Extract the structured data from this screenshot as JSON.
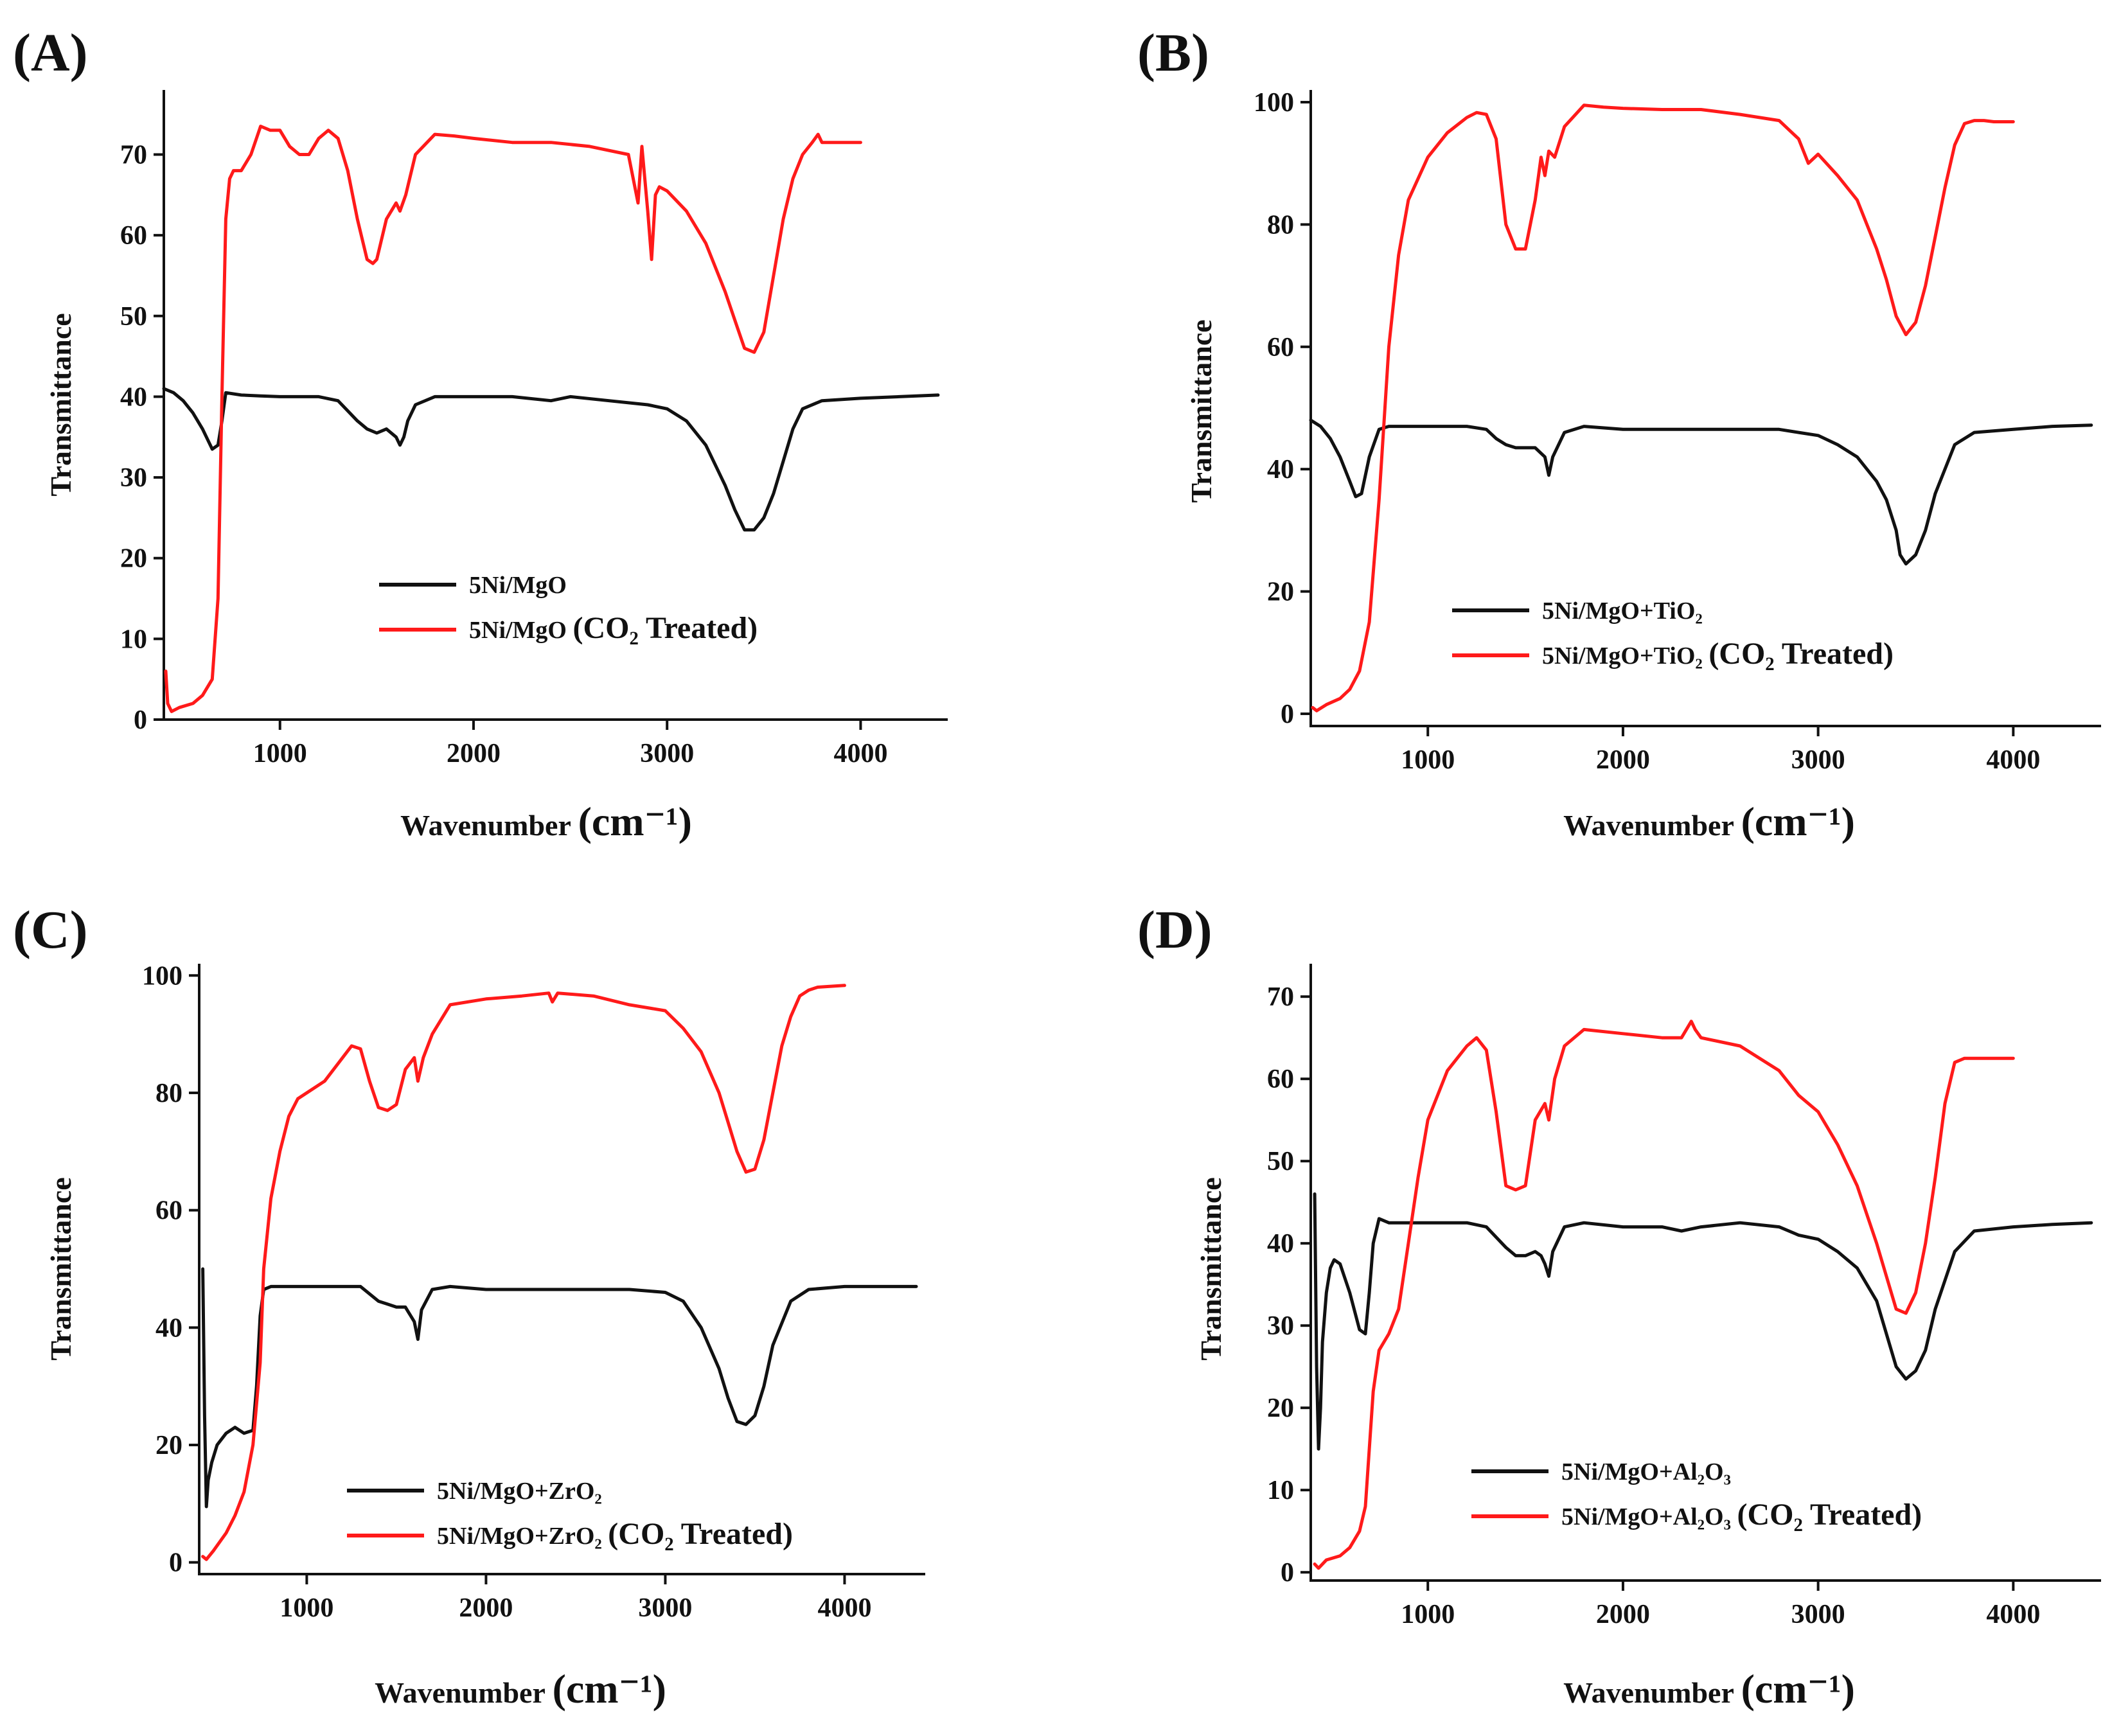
{
  "figure": {
    "x_unit": "(cm⁻¹)",
    "colors": {
      "untreated": "#111111",
      "co2_treated": "#ff1a1a"
    }
  },
  "chart_data": [
    {
      "type": "line",
      "panel": "(A)",
      "xlabel": "Wavenumber",
      "ylabel": "Transmittance",
      "xlim": [
        400,
        4450
      ],
      "ylim": [
        0,
        78
      ],
      "xticks": [
        1000,
        2000,
        3000,
        4000
      ],
      "yticks": [
        0,
        10,
        20,
        30,
        40,
        50,
        60,
        70
      ],
      "legend_position": "lower-center",
      "series": [
        {
          "name": "5Ni/MgO",
          "color": "#111111",
          "x": [
            400,
            450,
            500,
            550,
            600,
            650,
            680,
            700,
            720,
            800,
            900,
            1000,
            1100,
            1200,
            1300,
            1400,
            1450,
            1500,
            1550,
            1600,
            1620,
            1640,
            1660,
            1700,
            1800,
            2000,
            2200,
            2400,
            2500,
            2700,
            2900,
            3000,
            3100,
            3200,
            3300,
            3350,
            3400,
            3450,
            3500,
            3550,
            3600,
            3650,
            3700,
            3800,
            4000,
            4200,
            4400
          ],
          "y": [
            41,
            40.5,
            39.5,
            38,
            36,
            33.5,
            34,
            37,
            40.5,
            40.2,
            40.1,
            40,
            40,
            40,
            39.5,
            37,
            36,
            35.5,
            36,
            35,
            34,
            35,
            37,
            39,
            40,
            40,
            40,
            39.5,
            40,
            39.5,
            39,
            38.5,
            37,
            34,
            29,
            26,
            23.5,
            23.5,
            25,
            28,
            32,
            36,
            38.5,
            39.5,
            39.8,
            40,
            40.2
          ]
        },
        {
          "name": "5Ni/MgO (CO₂ Treated)",
          "color": "#ff1a1a",
          "x": [
            410,
            420,
            440,
            480,
            550,
            600,
            650,
            680,
            700,
            720,
            740,
            760,
            800,
            850,
            900,
            950,
            1000,
            1050,
            1100,
            1150,
            1200,
            1250,
            1300,
            1350,
            1400,
            1450,
            1480,
            1500,
            1550,
            1600,
            1620,
            1650,
            1700,
            1800,
            1900,
            2000,
            2200,
            2400,
            2600,
            2800,
            2850,
            2870,
            2900,
            2920,
            2940,
            2960,
            3000,
            3100,
            3200,
            3300,
            3350,
            3400,
            3450,
            3500,
            3550,
            3600,
            3650,
            3700,
            3750,
            3780,
            3800,
            3850,
            3900,
            4000
          ],
          "y": [
            6,
            2,
            1,
            1.5,
            2,
            3,
            5,
            15,
            40,
            62,
            67,
            68,
            68,
            70,
            73.5,
            73,
            73,
            71,
            70,
            70,
            72,
            73,
            72,
            68,
            62,
            57,
            56.5,
            57,
            62,
            64,
            63,
            65,
            70,
            72.5,
            72.3,
            72,
            71.5,
            71.5,
            71,
            70,
            64,
            71,
            63,
            57,
            65,
            66,
            65.5,
            63,
            59,
            53,
            49.5,
            46,
            45.5,
            48,
            55,
            62,
            67,
            70,
            71.5,
            72.5,
            71.5,
            71.5,
            71.5,
            71.5
          ]
        }
      ]
    },
    {
      "type": "line",
      "panel": "(B)",
      "xlabel": "Wavenumber",
      "ylabel": "Transmittance",
      "xlim": [
        400,
        4450
      ],
      "ylim": [
        -2,
        102
      ],
      "xticks": [
        1000,
        2000,
        3000,
        4000
      ],
      "yticks": [
        0,
        20,
        40,
        60,
        80,
        100
      ],
      "legend_position": "lower-center",
      "series": [
        {
          "name": "5Ni/MgO+TiO₂",
          "color": "#111111",
          "x": [
            400,
            450,
            500,
            550,
            600,
            630,
            660,
            700,
            750,
            800,
            900,
            1000,
            1100,
            1200,
            1300,
            1350,
            1400,
            1450,
            1500,
            1550,
            1600,
            1620,
            1640,
            1700,
            1800,
            2000,
            2200,
            2400,
            2600,
            2800,
            2900,
            3000,
            3100,
            3200,
            3300,
            3350,
            3400,
            3420,
            3450,
            3500,
            3550,
            3600,
            3700,
            3800,
            4000,
            4200,
            4400
          ],
          "y": [
            48,
            47,
            45,
            42,
            38,
            35.5,
            36,
            42,
            46.5,
            47,
            47,
            47,
            47,
            47,
            46.5,
            45,
            44,
            43.5,
            43.5,
            43.5,
            42,
            39,
            42,
            46,
            47,
            46.5,
            46.5,
            46.5,
            46.5,
            46.5,
            46,
            45.5,
            44,
            42,
            38,
            35,
            30,
            26,
            24.5,
            26,
            30,
            36,
            44,
            46,
            46.5,
            47,
            47.2
          ]
        },
        {
          "name": "5Ni/MgO+TiO₂ (CO₂ Treated)",
          "color": "#ff1a1a",
          "x": [
            410,
            430,
            480,
            550,
            600,
            650,
            700,
            750,
            800,
            850,
            900,
            1000,
            1100,
            1200,
            1250,
            1300,
            1350,
            1400,
            1450,
            1500,
            1550,
            1580,
            1600,
            1620,
            1650,
            1700,
            1800,
            1900,
            2000,
            2200,
            2400,
            2600,
            2800,
            2900,
            2950,
            3000,
            3100,
            3200,
            3300,
            3350,
            3400,
            3450,
            3500,
            3550,
            3600,
            3650,
            3700,
            3750,
            3800,
            3850,
            3900,
            4000
          ],
          "y": [
            1,
            0.5,
            1.5,
            2.5,
            4,
            7,
            15,
            35,
            60,
            75,
            84,
            91,
            95,
            97.5,
            98.3,
            98,
            94,
            80,
            76,
            76,
            84,
            91,
            88,
            92,
            91,
            96,
            99.5,
            99.2,
            99,
            98.8,
            98.8,
            98,
            97,
            94,
            90,
            91.5,
            88,
            84,
            76,
            71,
            65,
            62,
            64,
            70,
            78,
            86,
            93,
            96.5,
            97,
            97,
            96.8,
            96.8
          ]
        }
      ]
    },
    {
      "type": "line",
      "panel": "(C)",
      "xlabel": "Wavenumber",
      "ylabel": "Transmittance",
      "xlim": [
        400,
        4450
      ],
      "ylim": [
        -2,
        102
      ],
      "xticks": [
        1000,
        2000,
        3000,
        4000
      ],
      "yticks": [
        0,
        20,
        40,
        60,
        80,
        100
      ],
      "legend_position": "lower-center",
      "series": [
        {
          "name": "5Ni/MgO+ZrO₂",
          "color": "#111111",
          "x": [
            420,
            430,
            440,
            450,
            470,
            500,
            550,
            600,
            650,
            700,
            720,
            740,
            760,
            800,
            900,
            1000,
            1100,
            1200,
            1300,
            1400,
            1450,
            1500,
            1550,
            1600,
            1620,
            1640,
            1700,
            1800,
            2000,
            2200,
            2400,
            2600,
            2800,
            3000,
            3100,
            3200,
            3300,
            3350,
            3400,
            3450,
            3500,
            3550,
            3600,
            3700,
            3800,
            4000,
            4200,
            4400
          ],
          "y": [
            50,
            25,
            9.5,
            14,
            17,
            20,
            22,
            23,
            22,
            22.5,
            30,
            42,
            46.5,
            47,
            47,
            47,
            47,
            47,
            47,
            44.5,
            44,
            43.5,
            43.5,
            41,
            38,
            43,
            46.5,
            47,
            46.5,
            46.5,
            46.5,
            46.5,
            46.5,
            46,
            44.5,
            40,
            33,
            28,
            24,
            23.5,
            25,
            30,
            37,
            44.5,
            46.5,
            47,
            47,
            47
          ]
        },
        {
          "name": "5Ni/MgO+ZrO₂ (CO₂ Treated)",
          "color": "#ff1a1a",
          "x": [
            420,
            440,
            480,
            550,
            600,
            650,
            700,
            740,
            760,
            800,
            850,
            900,
            950,
            1000,
            1100,
            1200,
            1250,
            1300,
            1350,
            1400,
            1450,
            1500,
            1550,
            1600,
            1620,
            1650,
            1700,
            1800,
            2000,
            2200,
            2350,
            2370,
            2400,
            2600,
            2800,
            3000,
            3100,
            3200,
            3300,
            3350,
            3400,
            3450,
            3500,
            3550,
            3600,
            3650,
            3700,
            3750,
            3800,
            3850,
            4000
          ],
          "y": [
            1,
            0.5,
            2,
            5,
            8,
            12,
            20,
            34,
            50,
            62,
            70,
            76,
            79,
            80,
            82,
            86,
            88,
            87.5,
            82,
            77.5,
            77,
            78,
            84,
            86,
            82,
            86,
            90,
            95,
            96,
            96.5,
            97,
            95.5,
            97,
            96.5,
            95,
            94,
            91,
            87,
            80,
            75,
            70,
            66.5,
            67,
            72,
            80,
            88,
            93,
            96.5,
            97.5,
            98,
            98.3
          ]
        }
      ]
    },
    {
      "type": "line",
      "panel": "(D)",
      "xlabel": "Wavenumber",
      "ylabel": "Transmittance",
      "xlim": [
        400,
        4450
      ],
      "ylim": [
        -1,
        74
      ],
      "xticks": [
        1000,
        2000,
        3000,
        4000
      ],
      "yticks": [
        0,
        10,
        20,
        30,
        40,
        50,
        60,
        70
      ],
      "legend_position": "lower-center",
      "series": [
        {
          "name": "5Ni/MgO+Al₂O₃",
          "color": "#111111",
          "x": [
            420,
            430,
            440,
            450,
            460,
            480,
            500,
            520,
            550,
            600,
            650,
            680,
            700,
            720,
            750,
            800,
            900,
            1000,
            1100,
            1200,
            1300,
            1400,
            1450,
            1500,
            1550,
            1580,
            1600,
            1620,
            1640,
            1700,
            1800,
            2000,
            2200,
            2300,
            2400,
            2600,
            2800,
            2900,
            3000,
            3100,
            3200,
            3300,
            3350,
            3400,
            3450,
            3500,
            3550,
            3600,
            3700,
            3800,
            4000,
            4200,
            4400
          ],
          "y": [
            46,
            25,
            15,
            20,
            28,
            34,
            37,
            38,
            37.5,
            34,
            29.5,
            29,
            34,
            40,
            43,
            42.5,
            42.5,
            42.5,
            42.5,
            42.5,
            42,
            39.5,
            38.5,
            38.5,
            39,
            38.5,
            37.5,
            36,
            39,
            42,
            42.5,
            42,
            42,
            41.5,
            42,
            42.5,
            42,
            41,
            40.5,
            39,
            37,
            33,
            29,
            25,
            23.5,
            24.5,
            27,
            32,
            39,
            41.5,
            42,
            42.3,
            42.5
          ]
        },
        {
          "name": "5Ni/MgO+Al₂O₃ (CO₂ Treated)",
          "color": "#ff1a1a",
          "x": [
            420,
            440,
            480,
            550,
            600,
            650,
            680,
            700,
            720,
            750,
            800,
            850,
            900,
            950,
            1000,
            1100,
            1200,
            1250,
            1300,
            1350,
            1400,
            1450,
            1500,
            1550,
            1600,
            1620,
            1650,
            1700,
            1800,
            2000,
            2200,
            2300,
            2350,
            2370,
            2400,
            2600,
            2800,
            2900,
            3000,
            3100,
            3200,
            3300,
            3350,
            3400,
            3450,
            3500,
            3550,
            3600,
            3650,
            3700,
            3750,
            3800,
            4000
          ],
          "y": [
            1,
            0.5,
            1.5,
            2,
            3,
            5,
            8,
            15,
            22,
            27,
            29,
            32,
            40,
            48,
            55,
            61,
            64,
            65,
            63.5,
            56,
            47,
            46.5,
            47,
            55,
            57,
            55,
            60,
            64,
            66,
            65.5,
            65,
            65,
            67,
            66,
            65,
            64,
            61,
            58,
            56,
            52,
            47,
            40,
            36,
            32,
            31.5,
            34,
            40,
            48,
            57,
            62,
            62.5,
            62.5,
            62.5
          ]
        }
      ]
    }
  ]
}
